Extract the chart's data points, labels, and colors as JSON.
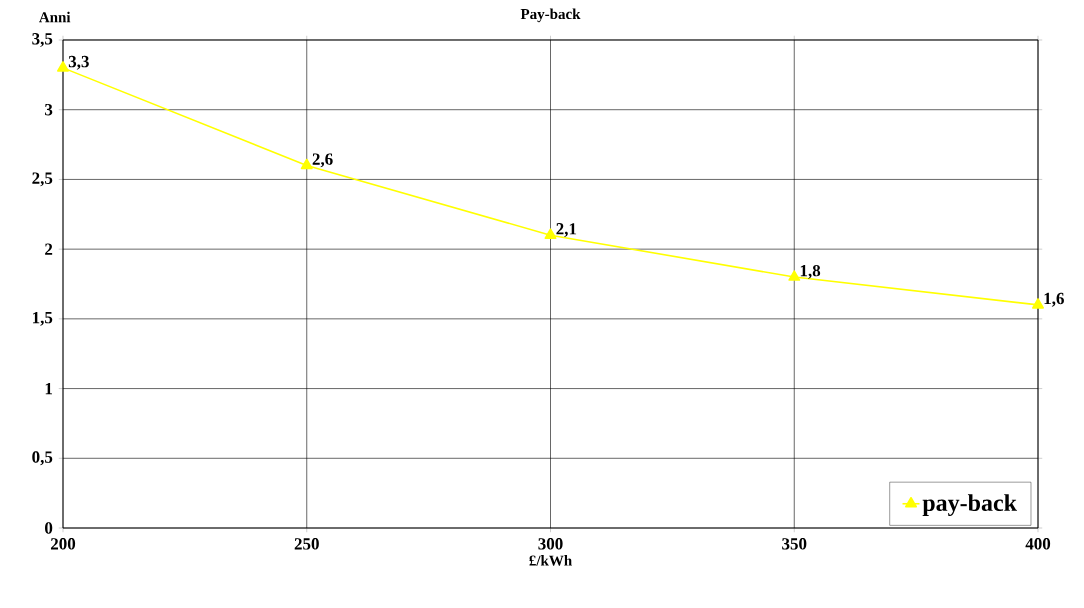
{
  "chart_data": {
    "type": "line",
    "title": "Pay-back",
    "xlabel": "£/kWh",
    "ylabel": "Anni",
    "x": [
      200,
      250,
      300,
      350,
      400
    ],
    "series": [
      {
        "name": "pay-back",
        "color": "#ffff00",
        "values": [
          3.3,
          2.6,
          2.1,
          1.8,
          1.6
        ],
        "value_labels": [
          "3,3",
          "2,6",
          "2,1",
          "1,8",
          "1,6"
        ]
      }
    ],
    "xlim": [
      200,
      400
    ],
    "xticks": [
      200,
      250,
      300,
      350,
      400
    ],
    "ylim": [
      0,
      3.5
    ],
    "yticks": [
      0,
      {
        "value": 0.5,
        "label": "0,5"
      },
      1,
      {
        "value": 1.5,
        "label": "1,5"
      },
      2,
      {
        "value": 2.5,
        "label": "2,5"
      },
      3,
      {
        "value": 3.5,
        "label": "3,5"
      }
    ],
    "grid": true,
    "legend": "bottom right",
    "marker": "triangle",
    "line_style": "solid"
  }
}
